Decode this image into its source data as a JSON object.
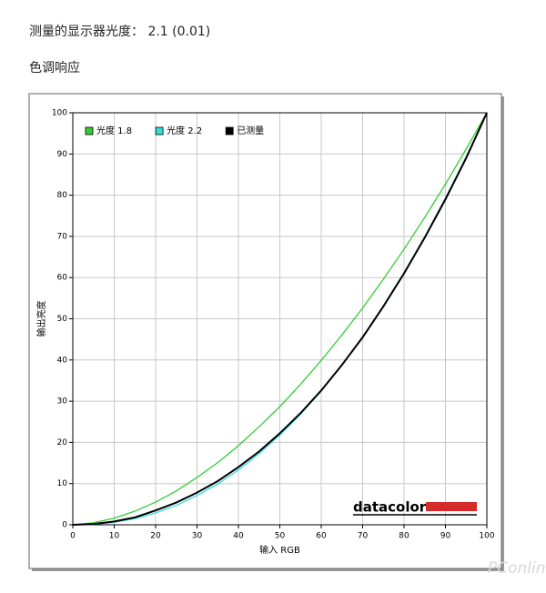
{
  "header": {
    "measured": "测量的显示器光度： 2.1 (0.01)",
    "section": "色调响应"
  },
  "watermark": "PConline",
  "chart_data": {
    "type": "line",
    "x_label": "输入 RGB",
    "y_label": "输出亮度",
    "logo": "datacolor",
    "x": [
      0,
      5,
      10,
      15,
      20,
      25,
      30,
      35,
      40,
      45,
      50,
      55,
      60,
      65,
      70,
      75,
      80,
      85,
      90,
      95,
      100
    ],
    "series": [
      {
        "name": "光度 1.8",
        "color": "#33cc33",
        "values": [
          0,
          0.5,
          1.6,
          3.3,
          5.5,
          8.2,
          11.5,
          15.1,
          19.2,
          23.8,
          28.7,
          34.1,
          39.9,
          46.1,
          52.6,
          59.6,
          66.9,
          74.6,
          82.7,
          91.2,
          100
        ]
      },
      {
        "name": "光度 2.2",
        "color": "#33dddd",
        "values": [
          0,
          0.1,
          0.6,
          1.5,
          2.9,
          4.7,
          7.1,
          9.9,
          13.3,
          17.3,
          21.8,
          26.8,
          32.5,
          38.8,
          45.6,
          53.1,
          61.2,
          69.9,
          79.3,
          89.3,
          100
        ]
      },
      {
        "name": "已测量",
        "color": "#000000",
        "values": [
          0,
          0.2,
          0.8,
          1.8,
          3.5,
          5.4,
          7.8,
          10.6,
          14.0,
          17.8,
          22.2,
          27.1,
          32.6,
          38.8,
          45.5,
          53.0,
          61.0,
          69.7,
          79.0,
          89.0,
          100
        ]
      }
    ],
    "xlim": [
      0,
      100
    ],
    "ylim": [
      0,
      100
    ],
    "xticks": [
      0,
      10,
      20,
      30,
      40,
      50,
      60,
      70,
      80,
      90,
      100
    ],
    "yticks": [
      0,
      10,
      20,
      30,
      40,
      50,
      60,
      70,
      80,
      90,
      100
    ],
    "grid": true,
    "legend": "top-left"
  }
}
